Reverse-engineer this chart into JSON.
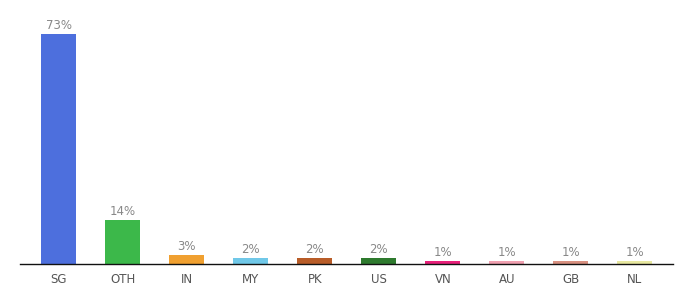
{
  "categories": [
    "SG",
    "OTH",
    "IN",
    "MY",
    "PK",
    "US",
    "VN",
    "AU",
    "GB",
    "NL"
  ],
  "values": [
    73,
    14,
    3,
    2,
    2,
    2,
    1,
    1,
    1,
    1
  ],
  "bar_colors": [
    "#4d6fdd",
    "#3cb84a",
    "#f0a030",
    "#70c8e8",
    "#b85c28",
    "#2e7a2e",
    "#e8207a",
    "#f0a0b0",
    "#d89080",
    "#e8e8a0"
  ],
  "labels": [
    "73%",
    "14%",
    "3%",
    "2%",
    "2%",
    "2%",
    "1%",
    "1%",
    "1%",
    "1%"
  ],
  "ylim": [
    0,
    80
  ],
  "background_color": "#ffffff",
  "label_fontsize": 8.5,
  "tick_fontsize": 8.5,
  "label_color": "#888888"
}
